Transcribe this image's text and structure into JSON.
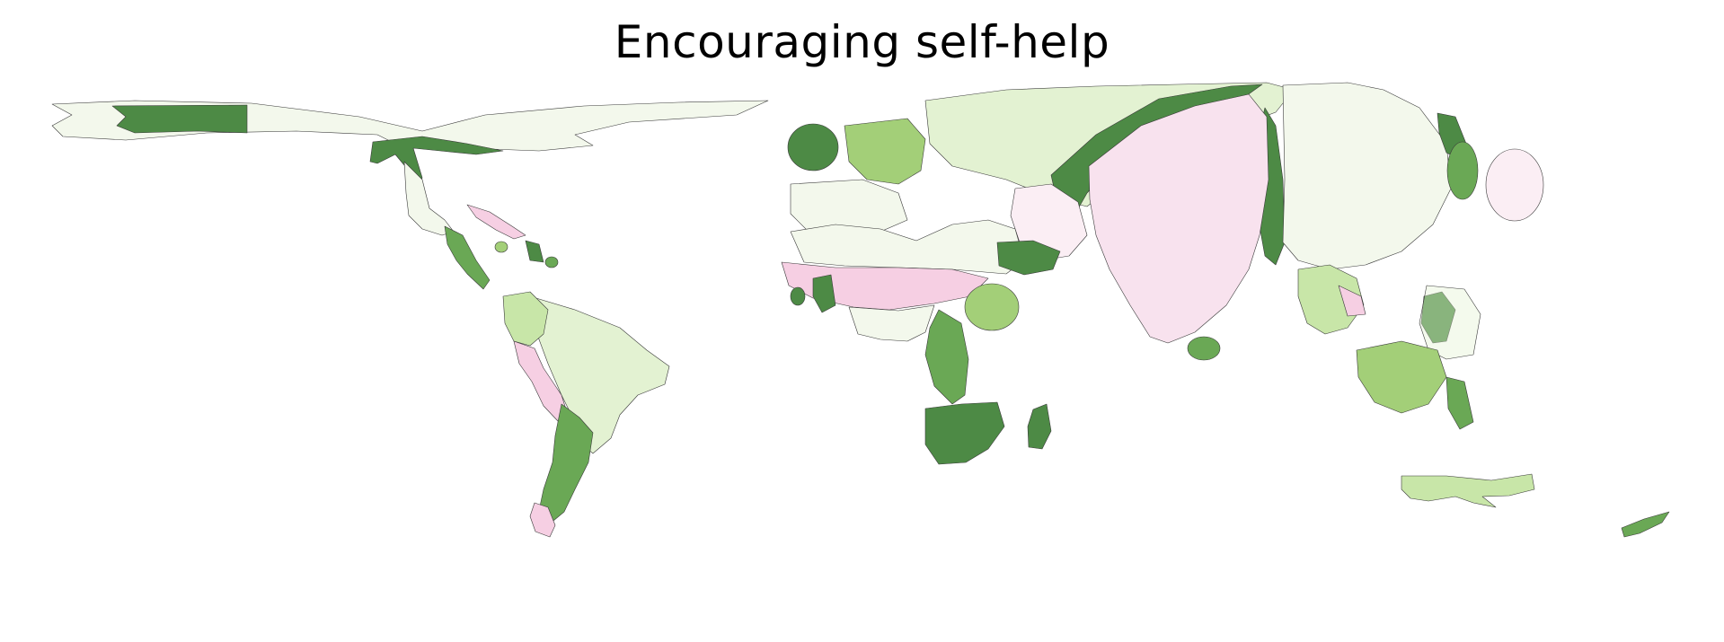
{
  "title": "Encouraging self-help",
  "colors": {
    "dark_green": "#4d8a45",
    "mid_green": "#6aa855",
    "light_green": "#a3cf78",
    "pale_green": "#c8e6a8",
    "very_pale_green": "#e3f2d2",
    "near_white_green": "#f3f8ec",
    "near_white_pink": "#fbeef4",
    "light_pink": "#f6cfe3",
    "pink": "#f8e2ee"
  },
  "regions": [
    {
      "name": "canada-band-west",
      "color": "near_white_green"
    },
    {
      "name": "canada-band-dark",
      "color": "dark_green"
    },
    {
      "name": "usa",
      "color": "dark_green"
    },
    {
      "name": "mexico",
      "color": "near_white_green"
    },
    {
      "name": "central-america",
      "color": "mid_green"
    },
    {
      "name": "caribbean",
      "color": "light_pink"
    },
    {
      "name": "brazil",
      "color": "very_pale_green"
    },
    {
      "name": "andes-north",
      "color": "pale_green"
    },
    {
      "name": "peru",
      "color": "light_pink"
    },
    {
      "name": "chile-argentina",
      "color": "mid_green"
    },
    {
      "name": "uk",
      "color": "dark_green"
    },
    {
      "name": "europe-west",
      "color": "near_white_green"
    },
    {
      "name": "europe-central",
      "color": "light_green"
    },
    {
      "name": "scandinavia-russia",
      "color": "very_pale_green"
    },
    {
      "name": "russia-dark-band",
      "color": "dark_green"
    },
    {
      "name": "north-africa",
      "color": "near_white_green"
    },
    {
      "name": "west-africa",
      "color": "light_pink"
    },
    {
      "name": "sahel",
      "color": "near_white_green"
    },
    {
      "name": "ethiopia",
      "color": "dark_green"
    },
    {
      "name": "kenya",
      "color": "light_green"
    },
    {
      "name": "congo",
      "color": "mid_green"
    },
    {
      "name": "southern-africa",
      "color": "dark_green"
    },
    {
      "name": "madagascar",
      "color": "dark_green"
    },
    {
      "name": "middle-east",
      "color": "near_white_pink"
    },
    {
      "name": "india",
      "color": "pink"
    },
    {
      "name": "sri-lanka",
      "color": "mid_green"
    },
    {
      "name": "central-asia",
      "color": "dark_green"
    },
    {
      "name": "china",
      "color": "near_white_green"
    },
    {
      "name": "korea",
      "color": "dark_green"
    },
    {
      "name": "japan",
      "color": "near_white_pink"
    },
    {
      "name": "se-asia-mainland",
      "color": "pale_green"
    },
    {
      "name": "philippines",
      "color": "dark_green"
    },
    {
      "name": "indonesia",
      "color": "light_green"
    },
    {
      "name": "australia",
      "color": "pale_green"
    },
    {
      "name": "new-zealand",
      "color": "mid_green"
    }
  ]
}
